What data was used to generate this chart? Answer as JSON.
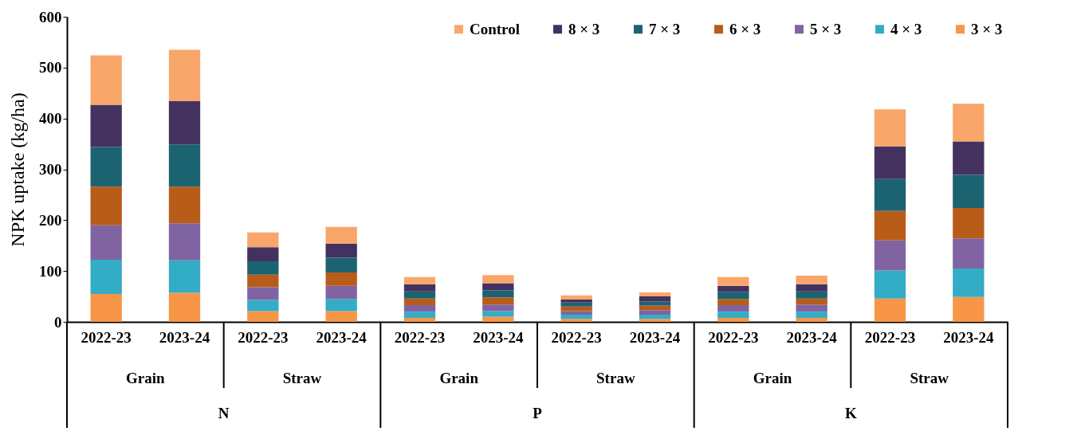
{
  "chart_data": {
    "type": "bar",
    "stacked": true,
    "ylabel": "NPK uptake (kg/ha)",
    "categories": [
      "2022-23",
      "2023-24",
      "2022-23",
      "2023-24",
      "2022-23",
      "2023-24",
      "2022-23",
      "2023-24",
      "2022-23",
      "2023-24",
      "2022-23",
      "2023-24"
    ],
    "series": [
      {
        "name": "3 × 3",
        "color": "#f79646",
        "values": [
          55,
          57,
          21,
          21,
          8,
          10,
          6,
          6,
          8,
          8,
          46,
          49
        ]
      },
      {
        "name": "4 × 3",
        "color": "#33acc6",
        "values": [
          67,
          64,
          22,
          24,
          12,
          11,
          8,
          8,
          12,
          12,
          55,
          56
        ]
      },
      {
        "name": "5 × 3",
        "color": "#8064a2",
        "values": [
          68,
          73,
          25,
          26,
          13,
          13,
          7,
          9,
          13,
          14,
          59,
          59
        ]
      },
      {
        "name": "6 × 3",
        "color": "#b85c1a",
        "values": [
          76,
          72,
          25,
          26,
          13,
          14,
          9,
          9,
          12,
          12,
          58,
          60
        ]
      },
      {
        "name": "7 × 3",
        "color": "#1c6372",
        "values": [
          78,
          83,
          26,
          29,
          14,
          14,
          8,
          8,
          14,
          14,
          63,
          65
        ]
      },
      {
        "name": "8 × 3",
        "color": "#433260",
        "values": [
          83,
          85,
          28,
          28,
          14,
          14,
          6,
          10,
          12,
          14,
          64,
          66
        ]
      },
      {
        "name": "Control",
        "color": "#f9a66b",
        "values": [
          97,
          101,
          29,
          33,
          14,
          16,
          8,
          8,
          17,
          17,
          73,
          74
        ]
      }
    ],
    "ylim": [
      0,
      600
    ],
    "yticks": [
      0,
      100,
      200,
      300,
      400,
      500,
      600
    ],
    "grid": false,
    "legend": "top right",
    "annotations": [
      "Grain",
      "Straw",
      "Grain",
      "Straw",
      "Grain",
      "Straw",
      "N",
      "P",
      "K"
    ]
  }
}
